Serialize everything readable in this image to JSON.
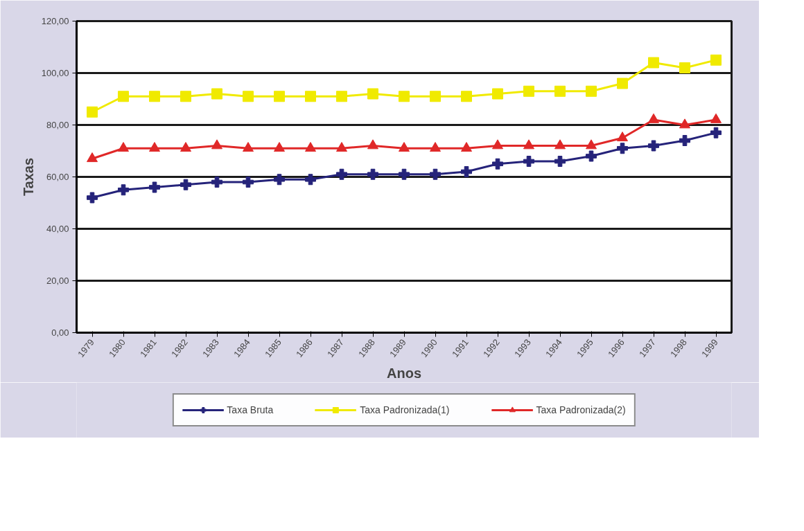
{
  "chart_data": {
    "type": "line",
    "xlabel": "Anos",
    "ylabel": "Taxas",
    "categories": [
      "1979",
      "1980",
      "1981",
      "1982",
      "1983",
      "1984",
      "1985",
      "1986",
      "1987",
      "1988",
      "1989",
      "1990",
      "1991",
      "1992",
      "1993",
      "1994",
      "1995",
      "1996",
      "1997",
      "1998",
      "1999"
    ],
    "series": [
      {
        "name": "Taxa Bruta",
        "color": "#25237a",
        "marker": "cross",
        "values": [
          52,
          55,
          56,
          57,
          58,
          58,
          59,
          59,
          61,
          61,
          61,
          61,
          62,
          65,
          66,
          66,
          68,
          71,
          72,
          74,
          77
        ]
      },
      {
        "name": "Taxa Padronizada(1)",
        "color": "#f0ea00",
        "marker": "square",
        "values": [
          85,
          91,
          91,
          91,
          92,
          91,
          91,
          91,
          91,
          92,
          91,
          91,
          91,
          92,
          93,
          93,
          93,
          96,
          104,
          102,
          105
        ]
      },
      {
        "name": "Taxa Padronizada(2)",
        "color": "#e02828",
        "marker": "triangle",
        "values": [
          67,
          71,
          71,
          71,
          72,
          71,
          71,
          71,
          71,
          72,
          71,
          71,
          71,
          72,
          72,
          72,
          72,
          75,
          82,
          80,
          82
        ]
      }
    ],
    "ylim": [
      0,
      120
    ],
    "yticks": [
      {
        "value": 0,
        "label": "0,00"
      },
      {
        "value": 20,
        "label": "20,00"
      },
      {
        "value": 40,
        "label": "40,00"
      },
      {
        "value": 60,
        "label": "60,00"
      },
      {
        "value": 80,
        "label": "80,00"
      },
      {
        "value": 100,
        "label": "100,00"
      },
      {
        "value": 120,
        "label": "120,00"
      }
    ],
    "grid": "y",
    "legend": "bottom",
    "line_style": "solid"
  }
}
